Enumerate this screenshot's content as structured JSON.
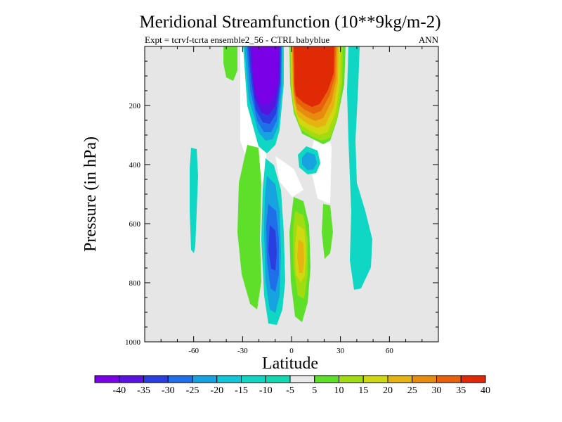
{
  "chart_data": {
    "type": "contour",
    "title": "Meridional Streamfunction (10**9kg/m-2)",
    "subtitle_left": "Expt = tcrvf-tcrta  ensemble2_56 - CTRL babyblue",
    "subtitle_right": "ANN",
    "xlabel": "Latitude",
    "ylabel": "Pressure (in hPa)",
    "xlim": [
      -90,
      90
    ],
    "ylim": [
      1000,
      0
    ],
    "x_ticks": [
      -60,
      -30,
      0,
      30,
      60
    ],
    "x_tick_labels": [
      "-60",
      "-30",
      "0",
      "30",
      "60"
    ],
    "y_ticks": [
      200,
      400,
      600,
      800,
      1000
    ],
    "y_tick_labels": [
      "200",
      "400",
      "600",
      "800",
      "1000"
    ],
    "background_color": "#e6e6e6",
    "levels": [
      -40,
      -35,
      -30,
      -25,
      -20,
      -15,
      -10,
      -5,
      5,
      10,
      15,
      20,
      25,
      30,
      35,
      40
    ],
    "level_labels": [
      "-40",
      "-35",
      "-30",
      "-25",
      "-20",
      "-15",
      "-10",
      "-5",
      "5",
      "10",
      "15",
      "20",
      "25",
      "30",
      "35",
      "40"
    ],
    "colorbar_colors": [
      "#7a00e6",
      "#5a12e0",
      "#2a3ee0",
      "#1f6fe8",
      "#16a3e0",
      "#10c6d8",
      "#10d6c4",
      "#10d9b0",
      "#e8e8e8",
      "#5ee02a",
      "#a0dc10",
      "#cfd810",
      "#e6b410",
      "#e88c10",
      "#e8620c",
      "#e02a06"
    ],
    "features": [
      {
        "name": "Southern upper cell",
        "sign": "negative",
        "lat_range": [
          -20,
          -3
        ],
        "p_range": [
          0,
          300
        ],
        "peak": -40
      },
      {
        "name": "Northern upper cell",
        "sign": "positive",
        "lat_range": [
          0,
          20
        ],
        "p_range": [
          0,
          330
        ],
        "peak": 40
      },
      {
        "name": "Southern lower cell",
        "sign": "negative",
        "lat_range": [
          -15,
          -3
        ],
        "p_range": [
          200,
          950
        ],
        "peak": -20
      },
      {
        "name": "Northern lower cell",
        "sign": "positive",
        "lat_range": [
          3,
          15
        ],
        "p_range": [
          550,
          940
        ],
        "peak": 20
      },
      {
        "name": "Southern subtropical band",
        "sign": "positive",
        "lat_range": [
          -30,
          -20
        ],
        "p_range": [
          200,
          900
        ],
        "peak": 10
      },
      {
        "name": "Northern midlatitude band",
        "sign": "negative",
        "lat_range": [
          34,
          48
        ],
        "p_range": [
          0,
          830
        ],
        "peak": -10
      }
    ]
  }
}
